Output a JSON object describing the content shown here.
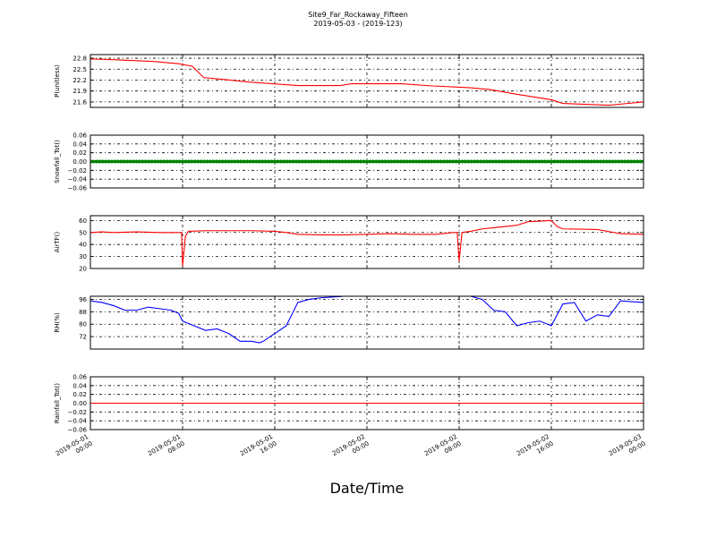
{
  "figure": {
    "title_line1": "Site9_Far_Rockaway_Fifteen",
    "title_line2": "2019-05-03 - (2019-123)",
    "xlabel": "Date/Time"
  },
  "chart_data": {
    "type": "line",
    "grid": true,
    "x": {
      "range": [
        "2019-05-01 00:00",
        "2019-05-03 00:00"
      ],
      "ticks": [
        {
          "value": "2019-05-01 00:00",
          "line1": "2019-05-01",
          "line2": "00:00"
        },
        {
          "value": "2019-05-01 08:00",
          "line1": "2019-05-01",
          "line2": "08:00"
        },
        {
          "value": "2019-05-01 16:00",
          "line1": "2019-05-01",
          "line2": "16:00"
        },
        {
          "value": "2019-05-02 00:00",
          "line1": "2019-05-02",
          "line2": "00:00"
        },
        {
          "value": "2019-05-02 08:00",
          "line1": "2019-05-02",
          "line2": "08:00"
        },
        {
          "value": "2019-05-02 16:00",
          "line1": "2019-05-02",
          "line2": "16:00"
        },
        {
          "value": "2019-05-03 00:00",
          "line1": "2019-05-03",
          "line2": "00:00"
        }
      ]
    },
    "panels": [
      {
        "key": "plevel",
        "ylabel": "P(unitless)",
        "ylim": [
          21.45,
          22.9
        ],
        "yticks": [
          {
            "value": 21.6,
            "label": "21.6"
          },
          {
            "value": 21.9,
            "label": "21.9"
          },
          {
            "value": 22.2,
            "label": "22.2"
          },
          {
            "value": 22.5,
            "label": "22.5"
          },
          {
            "value": 22.8,
            "label": "22.8"
          }
        ],
        "color": "#ff0000",
        "marker": false,
        "points": [
          [
            "2019-05-01 00:00",
            22.78
          ],
          [
            "2019-05-01 02:00",
            22.76
          ],
          [
            "2019-05-01 05:30",
            22.71
          ],
          [
            "2019-05-01 07:40",
            22.65
          ],
          [
            "2019-05-01 08:50",
            22.58
          ],
          [
            "2019-05-01 09:50",
            22.27
          ],
          [
            "2019-05-01 11:30",
            22.22
          ],
          [
            "2019-05-01 13:40",
            22.15
          ],
          [
            "2019-05-01 15:50",
            22.1
          ],
          [
            "2019-05-01 18:00",
            22.05
          ],
          [
            "2019-05-01 21:40",
            22.05
          ],
          [
            "2019-05-01 22:40",
            22.1
          ],
          [
            "2019-05-02 03:00",
            22.1
          ],
          [
            "2019-05-02 05:40",
            22.04
          ],
          [
            "2019-05-02 09:00",
            21.99
          ],
          [
            "2019-05-02 10:40",
            21.94
          ],
          [
            "2019-05-02 13:00",
            21.81
          ],
          [
            "2019-05-02 16:00",
            21.66
          ],
          [
            "2019-05-02 17:00",
            21.56
          ],
          [
            "2019-05-02 21:00",
            21.51
          ],
          [
            "2019-05-02 23:00",
            21.57
          ],
          [
            "2019-05-03 00:00",
            21.6
          ]
        ]
      },
      {
        "key": "snowfall",
        "ylabel": "Snowfall_Tot()",
        "ylim": [
          -0.06,
          0.06
        ],
        "yticks": [
          {
            "value": -0.06,
            "label": "−0.06"
          },
          {
            "value": -0.04,
            "label": "−0.04"
          },
          {
            "value": -0.02,
            "label": "−0.02"
          },
          {
            "value": 0.0,
            "label": "0.00"
          },
          {
            "value": 0.02,
            "label": "0.02"
          },
          {
            "value": 0.04,
            "label": "0.04"
          },
          {
            "value": 0.06,
            "label": "0.06"
          }
        ],
        "color": "#008000",
        "marker": true,
        "points": [
          [
            "2019-05-01 00:00",
            0.0
          ],
          [
            "2019-05-03 00:00",
            0.0
          ]
        ]
      },
      {
        "key": "airtemp",
        "ylabel": "AirTF()",
        "ylim": [
          20,
          64
        ],
        "yticks": [
          {
            "value": 20,
            "label": "20"
          },
          {
            "value": 30,
            "label": "30"
          },
          {
            "value": 40,
            "label": "40"
          },
          {
            "value": 50,
            "label": "50"
          },
          {
            "value": 60,
            "label": "60"
          }
        ],
        "color": "#ff0000",
        "marker": false,
        "points": [
          [
            "2019-05-01 00:00",
            50
          ],
          [
            "2019-05-01 01:00",
            50.5
          ],
          [
            "2019-05-01 02:00",
            50
          ],
          [
            "2019-05-01 04:00",
            50.5
          ],
          [
            "2019-05-01 06:00",
            50
          ],
          [
            "2019-05-01 07:30",
            50
          ],
          [
            "2019-05-01 07:55",
            50
          ],
          [
            "2019-05-01 08:00",
            22
          ],
          [
            "2019-05-01 08:15",
            47
          ],
          [
            "2019-05-01 08:30",
            51
          ],
          [
            "2019-05-01 10:00",
            51.5
          ],
          [
            "2019-05-01 12:00",
            51.5
          ],
          [
            "2019-05-01 14:00",
            51.5
          ],
          [
            "2019-05-01 16:00",
            51
          ],
          [
            "2019-05-01 17:00",
            50
          ],
          [
            "2019-05-01 18:00",
            48.5
          ],
          [
            "2019-05-01 20:00",
            48
          ],
          [
            "2019-05-01 22:00",
            48
          ],
          [
            "2019-05-02 00:00",
            48.5
          ],
          [
            "2019-05-02 02:00",
            49
          ],
          [
            "2019-05-02 04:00",
            48.5
          ],
          [
            "2019-05-02 06:00",
            48.5
          ],
          [
            "2019-05-02 07:30",
            50
          ],
          [
            "2019-05-02 07:50",
            50
          ],
          [
            "2019-05-02 08:00",
            26
          ],
          [
            "2019-05-02 08:15",
            50
          ],
          [
            "2019-05-02 09:00",
            51
          ],
          [
            "2019-05-02 10:00",
            53
          ],
          [
            "2019-05-02 11:00",
            54
          ],
          [
            "2019-05-02 13:00",
            56
          ],
          [
            "2019-05-02 14:00",
            59
          ],
          [
            "2019-05-02 15:00",
            59.5
          ],
          [
            "2019-05-02 16:00",
            60
          ],
          [
            "2019-05-02 16:30",
            55
          ],
          [
            "2019-05-02 17:00",
            53
          ],
          [
            "2019-05-02 20:00",
            52.5
          ],
          [
            "2019-05-02 22:00",
            49
          ],
          [
            "2019-05-03 00:00",
            48.5
          ]
        ]
      },
      {
        "key": "rh",
        "ylabel": "RH(%)",
        "ylim": [
          64,
          98
        ],
        "yticks": [
          {
            "value": 72,
            "label": "72"
          },
          {
            "value": 80,
            "label": "80"
          },
          {
            "value": 88,
            "label": "88"
          },
          {
            "value": 96,
            "label": "96"
          }
        ],
        "color": "#0000ff",
        "marker": false,
        "points": [
          [
            "2019-05-01 00:00",
            95
          ],
          [
            "2019-05-01 01:00",
            94
          ],
          [
            "2019-05-01 02:00",
            92
          ],
          [
            "2019-05-01 03:00",
            89
          ],
          [
            "2019-05-01 04:00",
            89
          ],
          [
            "2019-05-01 05:00",
            91
          ],
          [
            "2019-05-01 06:00",
            90
          ],
          [
            "2019-05-01 07:00",
            89
          ],
          [
            "2019-05-01 07:40",
            87
          ],
          [
            "2019-05-01 08:00",
            82
          ],
          [
            "2019-05-01 09:00",
            79
          ],
          [
            "2019-05-01 10:00",
            76
          ],
          [
            "2019-05-01 11:00",
            77
          ],
          [
            "2019-05-01 12:00",
            74
          ],
          [
            "2019-05-01 13:00",
            69
          ],
          [
            "2019-05-01 14:00",
            69
          ],
          [
            "2019-05-01 14:40",
            68
          ],
          [
            "2019-05-01 15:00",
            69
          ],
          [
            "2019-05-01 16:00",
            74
          ],
          [
            "2019-05-01 17:00",
            79
          ],
          [
            "2019-05-01 18:00",
            94
          ],
          [
            "2019-05-01 19:00",
            96
          ],
          [
            "2019-05-01 20:00",
            97
          ],
          [
            "2019-05-01 22:00",
            98
          ],
          [
            "2019-05-02 08:00",
            98
          ],
          [
            "2019-05-02 09:00",
            98
          ],
          [
            "2019-05-02 10:00",
            96
          ],
          [
            "2019-05-02 11:00",
            89
          ],
          [
            "2019-05-02 12:00",
            88
          ],
          [
            "2019-05-02 13:00",
            79
          ],
          [
            "2019-05-02 14:00",
            81
          ],
          [
            "2019-05-02 15:00",
            82
          ],
          [
            "2019-05-02 16:00",
            79
          ],
          [
            "2019-05-02 17:00",
            93
          ],
          [
            "2019-05-02 18:00",
            94
          ],
          [
            "2019-05-02 19:00",
            82
          ],
          [
            "2019-05-02 20:00",
            86
          ],
          [
            "2019-05-02 21:00",
            85
          ],
          [
            "2019-05-02 22:00",
            95
          ],
          [
            "2019-05-03 00:00",
            94
          ]
        ]
      },
      {
        "key": "rainfall",
        "ylabel": "Rainfall_Tot()",
        "ylim": [
          -0.06,
          0.06
        ],
        "yticks": [
          {
            "value": -0.06,
            "label": "−0.06"
          },
          {
            "value": -0.04,
            "label": "−0.04"
          },
          {
            "value": -0.02,
            "label": "−0.02"
          },
          {
            "value": 0.0,
            "label": "0.00"
          },
          {
            "value": 0.02,
            "label": "0.02"
          },
          {
            "value": 0.04,
            "label": "0.04"
          },
          {
            "value": 0.06,
            "label": "0.06"
          }
        ],
        "color": "#ff0000",
        "marker": false,
        "points": [
          [
            "2019-05-01 00:00",
            0.0
          ],
          [
            "2019-05-03 00:00",
            0.0
          ]
        ]
      }
    ]
  }
}
